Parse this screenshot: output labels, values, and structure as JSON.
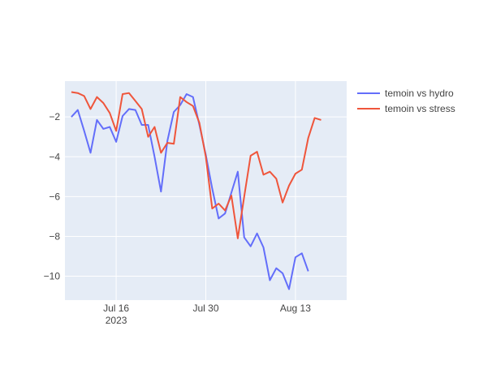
{
  "chart_data": {
    "type": "line",
    "title": "",
    "xlabel": "",
    "ylabel": "",
    "x_start": "2023-07-09",
    "x_range": [
      "2023-07-08",
      "2023-08-21"
    ],
    "ylim": [
      -11.2,
      -0.2
    ],
    "x_ticks": [
      {
        "date": "2023-07-16",
        "label": "Jul 16",
        "sublabel": "2023"
      },
      {
        "date": "2023-07-30",
        "label": "Jul 30",
        "sublabel": ""
      },
      {
        "date": "2023-08-13",
        "label": "Aug 13",
        "sublabel": ""
      }
    ],
    "y_ticks": [
      -2,
      -4,
      -6,
      -8,
      -10
    ],
    "y_tick_labels": [
      "−2",
      "−4",
      "−6",
      "−8",
      "−10"
    ],
    "grid": true,
    "legend_position": "top-right",
    "series": [
      {
        "name": "temoin vs hydro",
        "color": "#636efa",
        "values": [
          -2.0,
          -1.65,
          -2.7,
          -3.8,
          -2.15,
          -2.6,
          -2.5,
          -3.25,
          -1.95,
          -1.6,
          -1.65,
          -2.4,
          -2.4,
          -4.0,
          -5.75,
          -3.2,
          -1.75,
          -1.4,
          -0.85,
          -1.0,
          -2.4,
          -3.9,
          -5.6,
          -7.1,
          -6.85,
          -5.8,
          -4.75,
          -8.05,
          -8.5,
          -7.85,
          -8.55,
          -10.2,
          -9.6,
          -9.85,
          -10.65,
          -9.05,
          -8.85,
          -9.75
        ]
      },
      {
        "name": "temoin vs stress",
        "color": "#ef553b",
        "values": [
          -0.75,
          -0.8,
          -0.95,
          -1.6,
          -1.0,
          -1.3,
          -1.8,
          -2.7,
          -0.85,
          -0.8,
          -1.2,
          -1.6,
          -3.0,
          -2.5,
          -3.8,
          -3.3,
          -3.35,
          -1.0,
          -1.25,
          -1.45,
          -2.3,
          -4.0,
          -6.6,
          -6.35,
          -6.7,
          -5.95,
          -8.1,
          -6.0,
          -3.95,
          -3.75,
          -4.9,
          -4.75,
          -5.1,
          -6.3,
          -5.45,
          -4.85,
          -4.65,
          -3.05,
          -2.05,
          -2.15
        ]
      }
    ]
  }
}
